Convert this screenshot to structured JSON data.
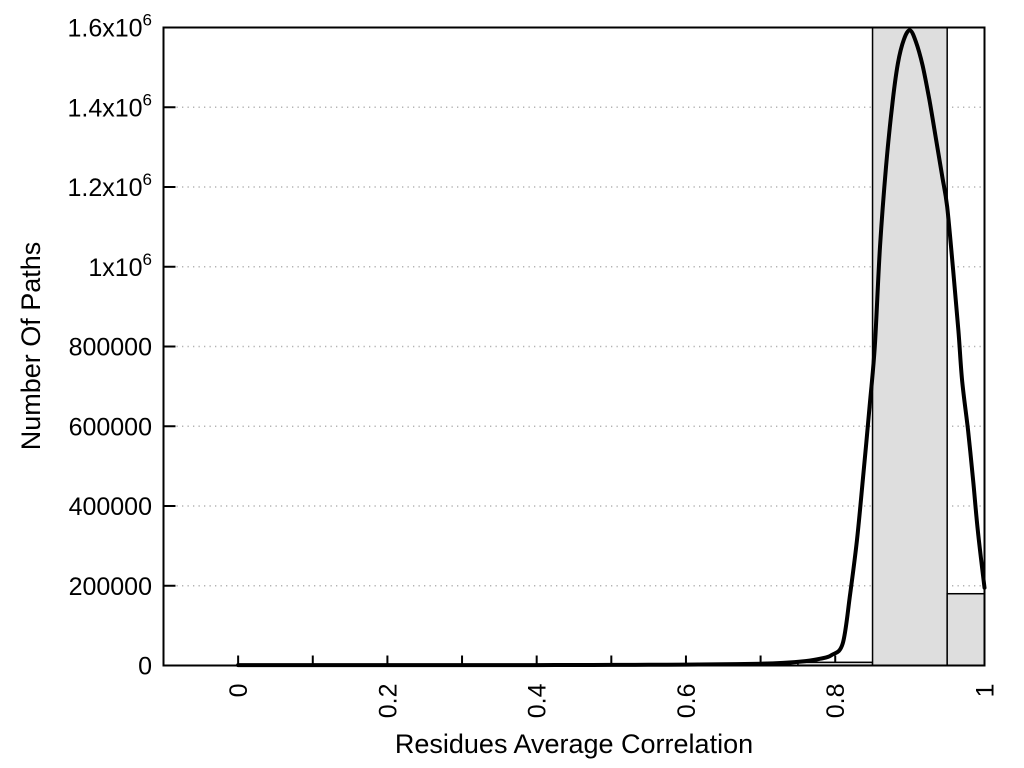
{
  "chart_data": {
    "type": "histogram_with_density_curve",
    "title": "",
    "xlabel": "Residues Average Correlation",
    "ylabel": "Number Of Paths",
    "xlim": [
      -0.1,
      1.0
    ],
    "ylim": [
      0,
      1600000
    ],
    "legend": "none",
    "grid": {
      "horizontal": "dotted",
      "vertical": "none"
    },
    "xticks": {
      "labeled": [
        {
          "v": 0.0,
          "text": "0"
        },
        {
          "v": 0.2,
          "text": "0.2"
        },
        {
          "v": 0.4,
          "text": "0.4"
        },
        {
          "v": 0.6,
          "text": "0.6"
        },
        {
          "v": 0.8,
          "text": "0.8"
        },
        {
          "v": 1.0,
          "text": "1"
        }
      ],
      "minor": [
        0.1,
        0.3,
        0.5,
        0.7,
        0.9
      ]
    },
    "yticks": [
      {
        "v": 0,
        "text": "0"
      },
      {
        "v": 200000,
        "text": "200000"
      },
      {
        "v": 400000,
        "text": "400000"
      },
      {
        "v": 600000,
        "text": "600000"
      },
      {
        "v": 800000,
        "text": "800000"
      },
      {
        "v": 1000000,
        "text": "1x10",
        "sup": "6"
      },
      {
        "v": 1200000,
        "text": "1.2x10",
        "sup": "6"
      },
      {
        "v": 1400000,
        "text": "1.4x10",
        "sup": "6"
      },
      {
        "v": 1600000,
        "text": "1.6x10",
        "sup": "6"
      }
    ],
    "bars": {
      "bin_width": 0.1,
      "items": [
        {
          "x0": 0.75,
          "x1": 0.85,
          "value": 8000,
          "clipped": false
        },
        {
          "x0": 0.85,
          "x1": 0.95,
          "value": 1600000,
          "clipped": true
        },
        {
          "x0": 0.95,
          "x1": 1.0,
          "value": 180000,
          "clipped": false
        }
      ]
    },
    "curve": {
      "name": "density-curve",
      "points": [
        [
          0.0,
          1000
        ],
        [
          0.05,
          1000
        ],
        [
          0.1,
          1000
        ],
        [
          0.15,
          1000
        ],
        [
          0.2,
          1000
        ],
        [
          0.25,
          1000
        ],
        [
          0.3,
          1000
        ],
        [
          0.35,
          1000
        ],
        [
          0.4,
          1000
        ],
        [
          0.45,
          1200
        ],
        [
          0.5,
          1400
        ],
        [
          0.55,
          1700
        ],
        [
          0.6,
          2200
        ],
        [
          0.65,
          3000
        ],
        [
          0.7,
          4500
        ],
        [
          0.73,
          6500
        ],
        [
          0.76,
          11000
        ],
        [
          0.78,
          17000
        ],
        [
          0.795,
          26000
        ],
        [
          0.81,
          55000
        ],
        [
          0.82,
          180000
        ],
        [
          0.829,
          313000
        ],
        [
          0.837,
          465000
        ],
        [
          0.846,
          650000
        ],
        [
          0.853,
          800000
        ],
        [
          0.86,
          1050000
        ],
        [
          0.868,
          1250000
        ],
        [
          0.876,
          1400000
        ],
        [
          0.884,
          1510000
        ],
        [
          0.892,
          1570000
        ],
        [
          0.9,
          1593000
        ],
        [
          0.908,
          1565000
        ],
        [
          0.917,
          1505000
        ],
        [
          0.926,
          1420000
        ],
        [
          0.935,
          1320000
        ],
        [
          0.943,
          1230000
        ],
        [
          0.95,
          1150000
        ],
        [
          0.958,
          990000
        ],
        [
          0.965,
          840000
        ],
        [
          0.97,
          715000
        ],
        [
          0.978,
          589000
        ],
        [
          0.985,
          460000
        ],
        [
          0.991,
          339000
        ],
        [
          1.0,
          195000
        ]
      ]
    },
    "colors": {
      "background": "#ffffff",
      "bar_fill": "#dedede",
      "bar_border": "#000000",
      "curve": "#000000",
      "grid_dots": "#b3b3b3",
      "axis": "#000000",
      "text": "#000000"
    }
  }
}
